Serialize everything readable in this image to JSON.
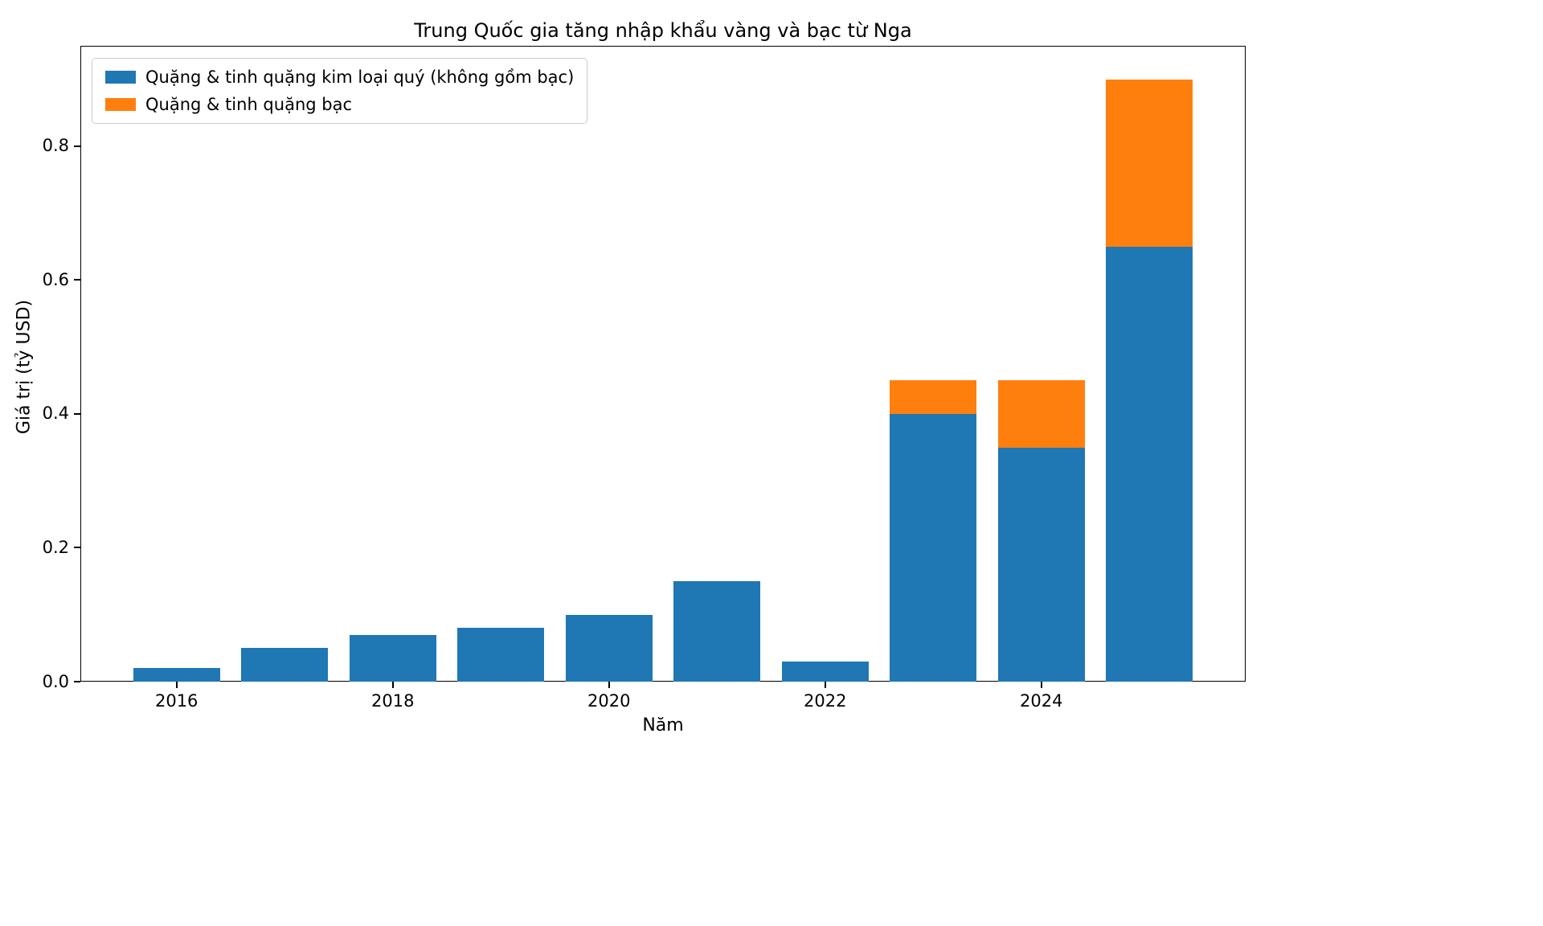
{
  "title": "Trung Quốc gia tăng nhập khẩu vàng và bạc từ Nga",
  "chart_data": {
    "type": "bar",
    "stacked": true,
    "title": "Trung Quốc gia tăng nhập khẩu vàng và bạc từ Nga",
    "xlabel": "Năm",
    "ylabel": "Giá trị (tỷ USD)",
    "categories": [
      2016,
      2017,
      2018,
      2019,
      2020,
      2021,
      2022,
      2023,
      2024,
      2025
    ],
    "series": [
      {
        "name": "Quặng & tinh quặng kim loại quý (không gồm bạc)",
        "color": "#1f77b4",
        "values": [
          0.02,
          0.05,
          0.07,
          0.08,
          0.1,
          0.15,
          0.03,
          0.4,
          0.35,
          0.65
        ]
      },
      {
        "name": "Quặng & tinh quặng bạc",
        "color": "#ff7f0e",
        "values": [
          0,
          0,
          0,
          0,
          0,
          0,
          0,
          0.05,
          0.1,
          0.25
        ]
      }
    ],
    "ylim": [
      0,
      0.95
    ],
    "yticks": [
      0.0,
      0.2,
      0.4,
      0.6,
      0.8
    ],
    "ytick_labels": [
      "0.0",
      "0.2",
      "0.4",
      "0.6",
      "0.8"
    ],
    "xticks": [
      2016,
      2018,
      2020,
      2022,
      2024
    ],
    "xtick_labels": [
      "2016",
      "2018",
      "2020",
      "2022",
      "2024"
    ],
    "bar_width": 0.8,
    "grid": false,
    "legend_position": "upper left"
  }
}
